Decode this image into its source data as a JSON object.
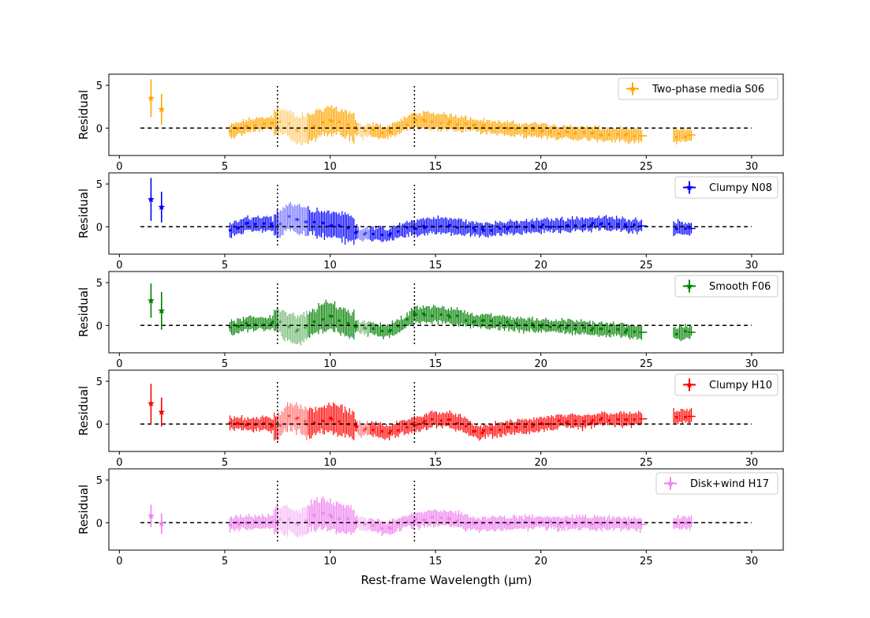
{
  "chart_data": {
    "type": "scatter",
    "xlabel": "Rest-frame Wavelength (μm)",
    "ylabel": "Residual",
    "xlim": [
      -0.5,
      31.5
    ],
    "ylim": [
      -3.2,
      6.3
    ],
    "xticks": [
      0,
      5,
      10,
      15,
      20,
      25,
      30
    ],
    "yticks": [
      0,
      5
    ],
    "zero_line": {
      "x_start": 1,
      "x_end": 30,
      "y": 0,
      "style": "dashed"
    },
    "vertical_lines": [
      7.5,
      14.0
    ],
    "panels": [
      {
        "name": "Two-phase media S06",
        "color": "#ffa500",
        "photometry": [
          {
            "x": 1.5,
            "y": 3.5,
            "err": 2.2
          },
          {
            "x": 2.0,
            "y": 2.2,
            "err": 1.8
          }
        ],
        "spectrum": [
          {
            "x": 5.3,
            "y": -0.4
          },
          {
            "x": 6.0,
            "y": 0.2
          },
          {
            "x": 6.5,
            "y": 0.4
          },
          {
            "x": 7.0,
            "y": 0.5
          },
          {
            "x": 7.5,
            "y": 0.8
          },
          {
            "x": 8.0,
            "y": 0.5
          },
          {
            "x": 8.5,
            "y": -0.3
          },
          {
            "x": 9.0,
            "y": 0.0
          },
          {
            "x": 9.5,
            "y": 0.6
          },
          {
            "x": 10.0,
            "y": 1.0
          },
          {
            "x": 10.5,
            "y": 0.6
          },
          {
            "x": 11.0,
            "y": 0.2
          },
          {
            "x": 11.5,
            "y": -0.4
          },
          {
            "x": 12.0,
            "y": -0.3
          },
          {
            "x": 12.7,
            "y": -0.5
          },
          {
            "x": 13.5,
            "y": 0.4
          },
          {
            "x": 14.0,
            "y": 0.9
          },
          {
            "x": 15.0,
            "y": 0.8
          },
          {
            "x": 16.0,
            "y": 0.6
          },
          {
            "x": 17.0,
            "y": 0.3
          },
          {
            "x": 18.0,
            "y": 0.0
          },
          {
            "x": 19.0,
            "y": -0.2
          },
          {
            "x": 20.0,
            "y": -0.2
          },
          {
            "x": 21.0,
            "y": -0.5
          },
          {
            "x": 22.0,
            "y": -0.6
          },
          {
            "x": 23.0,
            "y": -0.7
          },
          {
            "x": 24.0,
            "y": -0.8
          },
          {
            "x": 24.8,
            "y": -0.9
          },
          {
            "x": 26.5,
            "y": -0.9
          },
          {
            "x": 27.0,
            "y": -0.8
          }
        ]
      },
      {
        "name": "Clumpy N08",
        "color": "#0000ff",
        "photometry": [
          {
            "x": 1.5,
            "y": 3.2,
            "err": 2.5
          },
          {
            "x": 2.0,
            "y": 2.3,
            "err": 1.8
          }
        ],
        "spectrum": [
          {
            "x": 5.3,
            "y": -0.4
          },
          {
            "x": 6.0,
            "y": 0.3
          },
          {
            "x": 6.5,
            "y": 0.4
          },
          {
            "x": 7.0,
            "y": 0.3
          },
          {
            "x": 7.5,
            "y": 0.2
          },
          {
            "x": 8.0,
            "y": 1.2
          },
          {
            "x": 8.5,
            "y": 1.0
          },
          {
            "x": 9.0,
            "y": 0.6
          },
          {
            "x": 9.5,
            "y": 0.4
          },
          {
            "x": 10.0,
            "y": 0.2
          },
          {
            "x": 10.5,
            "y": 0.1
          },
          {
            "x": 11.0,
            "y": -0.3
          },
          {
            "x": 11.5,
            "y": -0.9
          },
          {
            "x": 12.0,
            "y": -0.7
          },
          {
            "x": 12.7,
            "y": -1.1
          },
          {
            "x": 13.5,
            "y": -0.3
          },
          {
            "x": 14.0,
            "y": -0.1
          },
          {
            "x": 15.0,
            "y": 0.2
          },
          {
            "x": 16.0,
            "y": 0.0
          },
          {
            "x": 17.0,
            "y": -0.3
          },
          {
            "x": 18.0,
            "y": -0.2
          },
          {
            "x": 19.0,
            "y": -0.1
          },
          {
            "x": 20.0,
            "y": 0.1
          },
          {
            "x": 21.0,
            "y": 0.2
          },
          {
            "x": 22.0,
            "y": 0.3
          },
          {
            "x": 23.0,
            "y": 0.4
          },
          {
            "x": 24.0,
            "y": 0.2
          },
          {
            "x": 24.8,
            "y": 0.1
          },
          {
            "x": 26.5,
            "y": -0.1
          },
          {
            "x": 27.0,
            "y": -0.2
          }
        ]
      },
      {
        "name": "Smooth F06",
        "color": "#008000",
        "photometry": [
          {
            "x": 1.5,
            "y": 2.9,
            "err": 2.0
          },
          {
            "x": 2.0,
            "y": 1.7,
            "err": 2.2
          }
        ],
        "spectrum": [
          {
            "x": 5.3,
            "y": -0.3
          },
          {
            "x": 6.0,
            "y": 0.1
          },
          {
            "x": 6.5,
            "y": 0.3
          },
          {
            "x": 7.0,
            "y": 0.2
          },
          {
            "x": 7.5,
            "y": 0.5
          },
          {
            "x": 8.0,
            "y": -0.2
          },
          {
            "x": 8.5,
            "y": -0.6
          },
          {
            "x": 9.0,
            "y": 0.0
          },
          {
            "x": 9.5,
            "y": 0.8
          },
          {
            "x": 10.0,
            "y": 1.1
          },
          {
            "x": 10.5,
            "y": 0.6
          },
          {
            "x": 11.0,
            "y": 0.0
          },
          {
            "x": 11.5,
            "y": -0.2
          },
          {
            "x": 12.0,
            "y": -0.4
          },
          {
            "x": 12.7,
            "y": -0.7
          },
          {
            "x": 13.5,
            "y": 0.3
          },
          {
            "x": 14.0,
            "y": 1.2
          },
          {
            "x": 15.0,
            "y": 1.3
          },
          {
            "x": 16.0,
            "y": 1.0
          },
          {
            "x": 17.0,
            "y": 0.5
          },
          {
            "x": 18.0,
            "y": 0.4
          },
          {
            "x": 19.0,
            "y": 0.1
          },
          {
            "x": 20.0,
            "y": 0.0
          },
          {
            "x": 21.0,
            "y": -0.1
          },
          {
            "x": 22.0,
            "y": -0.3
          },
          {
            "x": 23.0,
            "y": -0.5
          },
          {
            "x": 24.0,
            "y": -0.6
          },
          {
            "x": 24.8,
            "y": -0.8
          },
          {
            "x": 26.5,
            "y": -0.9
          },
          {
            "x": 27.0,
            "y": -0.8
          }
        ]
      },
      {
        "name": "Clumpy H10",
        "color": "#ff0000",
        "photometry": [
          {
            "x": 1.5,
            "y": 2.4,
            "err": 2.3
          },
          {
            "x": 2.0,
            "y": 1.4,
            "err": 1.7
          }
        ],
        "spectrum": [
          {
            "x": 5.3,
            "y": 0.1
          },
          {
            "x": 6.0,
            "y": 0.0
          },
          {
            "x": 6.5,
            "y": -0.1
          },
          {
            "x": 7.0,
            "y": 0.1
          },
          {
            "x": 7.5,
            "y": -0.5
          },
          {
            "x": 8.0,
            "y": 1.0
          },
          {
            "x": 8.5,
            "y": 0.6
          },
          {
            "x": 9.0,
            "y": 0.0
          },
          {
            "x": 9.5,
            "y": 0.5
          },
          {
            "x": 10.0,
            "y": 0.7
          },
          {
            "x": 10.5,
            "y": 0.4
          },
          {
            "x": 11.0,
            "y": 0.0
          },
          {
            "x": 11.5,
            "y": -0.7
          },
          {
            "x": 12.0,
            "y": -0.5
          },
          {
            "x": 12.7,
            "y": -1.0
          },
          {
            "x": 13.5,
            "y": -0.3
          },
          {
            "x": 14.0,
            "y": -0.1
          },
          {
            "x": 15.0,
            "y": 0.6
          },
          {
            "x": 16.0,
            "y": 0.3
          },
          {
            "x": 17.0,
            "y": -1.0
          },
          {
            "x": 18.0,
            "y": -0.6
          },
          {
            "x": 19.0,
            "y": -0.3
          },
          {
            "x": 20.0,
            "y": 0.0
          },
          {
            "x": 21.0,
            "y": 0.3
          },
          {
            "x": 22.0,
            "y": 0.2
          },
          {
            "x": 23.0,
            "y": 0.6
          },
          {
            "x": 24.0,
            "y": 0.5
          },
          {
            "x": 24.8,
            "y": 0.6
          },
          {
            "x": 26.5,
            "y": 0.9
          },
          {
            "x": 27.0,
            "y": 0.9
          }
        ]
      },
      {
        "name": "Disk+wind H17",
        "color": "#ee82ee",
        "photometry": [
          {
            "x": 1.5,
            "y": 0.8,
            "err": 1.3
          },
          {
            "x": 2.0,
            "y": -0.1,
            "err": 1.2
          }
        ],
        "spectrum": [
          {
            "x": 5.3,
            "y": -0.1
          },
          {
            "x": 6.0,
            "y": 0.0
          },
          {
            "x": 6.5,
            "y": 0.1
          },
          {
            "x": 7.0,
            "y": 0.0
          },
          {
            "x": 7.5,
            "y": 0.3
          },
          {
            "x": 8.0,
            "y": 0.3
          },
          {
            "x": 8.5,
            "y": -0.2
          },
          {
            "x": 9.0,
            "y": 0.6
          },
          {
            "x": 9.5,
            "y": 1.1
          },
          {
            "x": 10.0,
            "y": 0.9
          },
          {
            "x": 10.5,
            "y": 0.5
          },
          {
            "x": 11.0,
            "y": 0.2
          },
          {
            "x": 11.5,
            "y": -0.2
          },
          {
            "x": 12.0,
            "y": -0.3
          },
          {
            "x": 12.7,
            "y": -0.6
          },
          {
            "x": 13.5,
            "y": 0.1
          },
          {
            "x": 14.0,
            "y": 0.3
          },
          {
            "x": 15.0,
            "y": 0.5
          },
          {
            "x": 16.0,
            "y": 0.4
          },
          {
            "x": 17.0,
            "y": -0.2
          },
          {
            "x": 18.0,
            "y": -0.1
          },
          {
            "x": 19.0,
            "y": 0.0
          },
          {
            "x": 20.0,
            "y": 0.0
          },
          {
            "x": 21.0,
            "y": 0.0
          },
          {
            "x": 22.0,
            "y": 0.0
          },
          {
            "x": 23.0,
            "y": -0.1
          },
          {
            "x": 24.0,
            "y": -0.1
          },
          {
            "x": 24.8,
            "y": -0.2
          },
          {
            "x": 26.5,
            "y": 0.0
          },
          {
            "x": 27.0,
            "y": 0.0
          }
        ]
      }
    ]
  }
}
